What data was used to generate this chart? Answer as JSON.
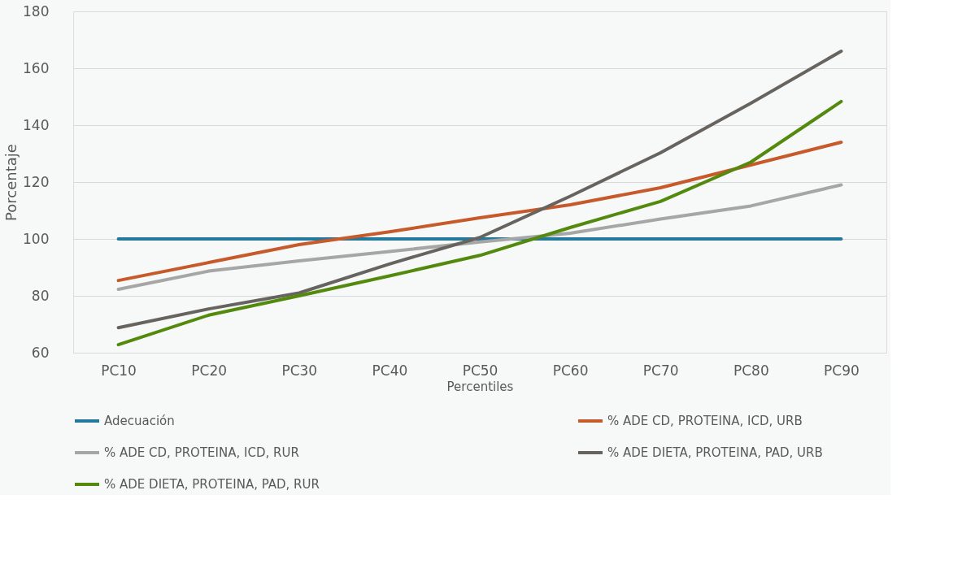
{
  "chart_data": {
    "type": "line",
    "xlabel": "Percentiles",
    "ylabel": "Porcentaje",
    "categories": [
      "PC10",
      "PC20",
      "PC30",
      "PC40",
      "PC50",
      "PC60",
      "PC70",
      "PC80",
      "PC90"
    ],
    "series": [
      {
        "name": "Adecuación",
        "color": "#23799b",
        "values": [
          100,
          100,
          100,
          100,
          100,
          100,
          100,
          100,
          100
        ]
      },
      {
        "name": "% ADE CD, PROTEINA, ICD, URB",
        "color": "#c65a2a",
        "values": [
          85.4,
          91.7,
          98,
          102.5,
          107.4,
          112,
          118,
          126,
          134
        ]
      },
      {
        "name": "% ADE CD, PROTEINA, ICD, RUR",
        "color": "#a6a6a6",
        "values": [
          82.3,
          88.7,
          92.3,
          95.6,
          98.9,
          102,
          107,
          111.6,
          119
        ]
      },
      {
        "name": "% ADE DIETA, PROTEINA, PAD,   URB",
        "color": "#67645f",
        "values": [
          68.8,
          75.4,
          81,
          91.2,
          100.5,
          115,
          130.3,
          147.7,
          166
        ]
      },
      {
        "name": "% ADE DIETA, PROTEINA, PAD,   RUR",
        "color": "#538a0d",
        "values": [
          62.8,
          73.2,
          80,
          87,
          94.2,
          104,
          113.2,
          127,
          148.3
        ]
      }
    ],
    "ylim": [
      60,
      180
    ],
    "yticks": [
      60,
      80,
      100,
      120,
      140,
      160,
      180
    ],
    "grid": "y",
    "legend": "bottom",
    "marker": "none",
    "line_style": "solid"
  }
}
